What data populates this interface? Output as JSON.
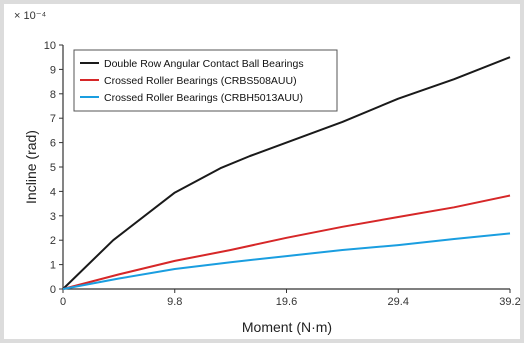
{
  "chart_data": {
    "type": "line",
    "title": "",
    "xlabel": "Moment (N·m)",
    "ylabel": "Incline (rad)",
    "scale_label": "× 10⁻⁴",
    "xlim": [
      0,
      39.2
    ],
    "ylim": [
      0,
      10
    ],
    "x_ticks": [
      0,
      9.8,
      19.6,
      29.4,
      39.2
    ],
    "x_tick_labels": [
      "0",
      "9.8",
      "19.6",
      "29.4",
      "39.2"
    ],
    "y_ticks": [
      0,
      1,
      2,
      3,
      4,
      5,
      6,
      7,
      8,
      9,
      10
    ],
    "y_tick_labels": [
      "0",
      "1",
      "2",
      "3",
      "4",
      "5",
      "6",
      "7",
      "8",
      "9",
      "10"
    ],
    "grid": false,
    "legend_position": "top-left",
    "series": [
      {
        "name": "Double Row Angular Contact Ball Bearings",
        "color": "#1a1a1a",
        "x": [
          0,
          4.4,
          9.8,
          13.8,
          16.4,
          19.6,
          24.5,
          29.4,
          34.3,
          39.2
        ],
        "y": [
          0,
          2.0,
          3.95,
          4.95,
          5.45,
          6.0,
          6.85,
          7.8,
          8.6,
          9.5
        ]
      },
      {
        "name": "Crossed Roller Bearings (CRBS508AUU)",
        "color": "#d62728",
        "x": [
          0,
          4.9,
          9.8,
          14.7,
          19.6,
          24.5,
          29.4,
          34.3,
          39.2
        ],
        "y": [
          0,
          0.6,
          1.15,
          1.6,
          2.1,
          2.55,
          2.95,
          3.35,
          3.83
        ]
      },
      {
        "name": "Crossed Roller Bearings (CRBH5013AUU)",
        "color": "#1a9ee0",
        "x": [
          0,
          4.9,
          9.8,
          14.7,
          19.6,
          24.5,
          29.4,
          34.3,
          39.2
        ],
        "y": [
          0,
          0.43,
          0.82,
          1.1,
          1.35,
          1.6,
          1.8,
          2.05,
          2.28
        ]
      }
    ]
  }
}
